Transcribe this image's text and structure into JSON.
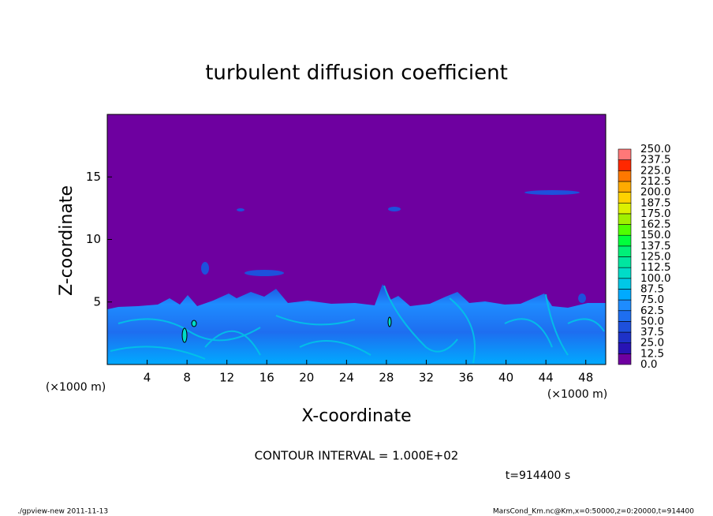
{
  "chart_data": {
    "type": "heatmap",
    "title": "turbulent diffusion coefficient",
    "x_label": "X-coordinate",
    "y_label": "Z-coordinate",
    "x_unit_label": "(×1000 m)",
    "y_unit_label": "(×1000 m)",
    "xlim": [
      0,
      50
    ],
    "ylim": [
      0,
      20
    ],
    "xticks": [
      4,
      8,
      12,
      16,
      20,
      24,
      28,
      32,
      36,
      40,
      44,
      48
    ],
    "yticks": [
      5,
      10,
      15
    ],
    "colorbar": {
      "levels": [
        {
          "value": 0,
          "label": "0.0"
        },
        {
          "value": 12.5,
          "label": "12.5"
        },
        {
          "value": 25,
          "label": "25.0"
        },
        {
          "value": 37.5,
          "label": "37.5"
        },
        {
          "value": 50,
          "label": "50.0"
        },
        {
          "value": 62.5,
          "label": "62.5"
        },
        {
          "value": 75,
          "label": "75.0"
        },
        {
          "value": 87.5,
          "label": "87.5"
        },
        {
          "value": 100,
          "label": "100.0"
        },
        {
          "value": 112.5,
          "label": "112.5"
        },
        {
          "value": 125,
          "label": "125.0"
        },
        {
          "value": 137.5,
          "label": "137.5"
        },
        {
          "value": 150,
          "label": "150.0"
        },
        {
          "value": 162.5,
          "label": "162.5"
        },
        {
          "value": 175,
          "label": "175.0"
        },
        {
          "value": 187.5,
          "label": "187.5"
        },
        {
          "value": 200,
          "label": "200.0"
        },
        {
          "value": 212.5,
          "label": "212.5"
        },
        {
          "value": 225,
          "label": "225.0"
        },
        {
          "value": 237.5,
          "label": "237.5"
        },
        {
          "value": 250,
          "label": "250.0"
        }
      ],
      "colors": [
        "#6e00a0",
        "#2814b4",
        "#1e32c8",
        "#1e50dc",
        "#1e6ef0",
        "#1e8cff",
        "#00aaff",
        "#00c8e6",
        "#00dcc8",
        "#00e6a0",
        "#00f078",
        "#00ff3c",
        "#50ff00",
        "#a0f000",
        "#dcf000",
        "#ffd200",
        "#ffaa00",
        "#ff7800",
        "#ff2800",
        "#ff7878"
      ]
    },
    "contour_interval": "CONTOUR INTERVAL = 1.000E+02",
    "time_label": "t=914400 s",
    "footer_left": "./gpview-new  2011-11-13",
    "footer_right": "MarsCond_Km.nc@Km,x=0:50000,z=0:20000,t=914400"
  }
}
